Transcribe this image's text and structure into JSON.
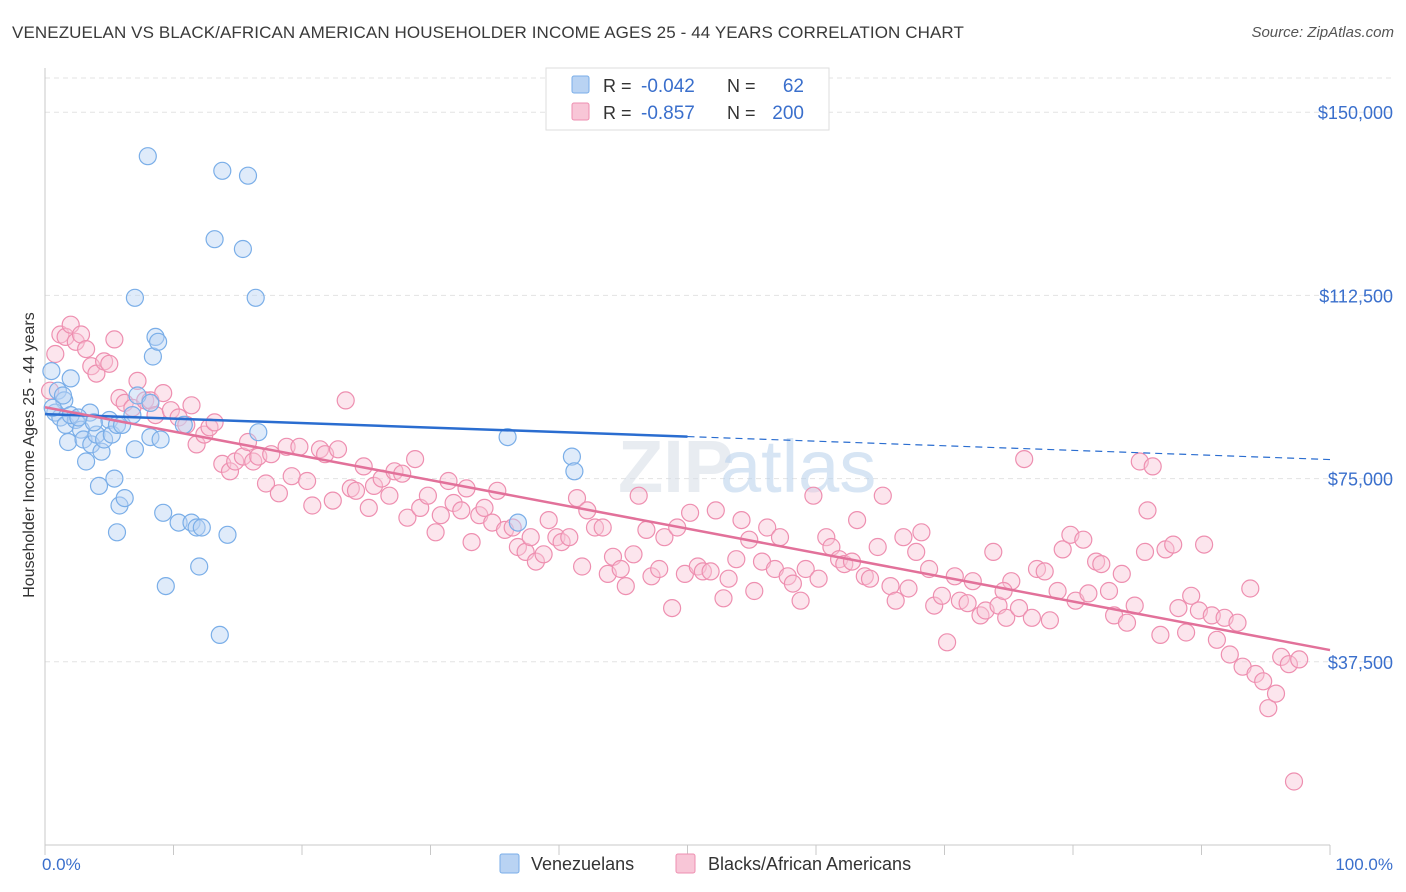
{
  "title": "VENEZUELAN VS BLACK/AFRICAN AMERICAN HOUSEHOLDER INCOME AGES 25 - 44 YEARS CORRELATION CHART",
  "source": "Source: ZipAtlas.com",
  "watermark": {
    "part1": "ZIP",
    "part2": "atlas"
  },
  "colors": {
    "venezuelan": "#7aaee8",
    "venezuelan_fill": "#b9d3f3",
    "venezuelan_line": "#2a6dd0",
    "black": "#ee8fb0",
    "black_fill": "#f8c6d7",
    "black_line": "#e2719a",
    "axis_label": "#3a6fcc",
    "grid": "#e3e3e3"
  },
  "chart_data": {
    "type": "scatter",
    "title": "VENEZUELAN VS BLACK/AFRICAN AMERICAN HOUSEHOLDER INCOME AGES 25 - 44 YEARS CORRELATION CHART",
    "xlabel": "",
    "ylabel": "Householder Income Ages 25 - 44 years",
    "xlim": [
      0,
      100
    ],
    "ylim": [
      0,
      157000
    ],
    "x_tick_labels": [
      "0.0%",
      "100.0%"
    ],
    "y_ticks": [
      37500,
      75000,
      112500,
      150000
    ],
    "y_tick_labels": [
      "$37,500",
      "$75,000",
      "$112,500",
      "$150,000"
    ],
    "grid": true,
    "legend_position": "top-center",
    "bottom_legend": [
      "Venezuelans",
      "Blacks/African Americans"
    ],
    "stats": [
      {
        "series": "Venezuelans",
        "r_label": "R =",
        "r": "-0.042",
        "n_label": "N =",
        "n": "62"
      },
      {
        "series": "Blacks/African Americans",
        "r_label": "R =",
        "r": "-0.857",
        "n_label": "N =",
        "n": "200"
      }
    ],
    "series": [
      {
        "name": "Venezuelans",
        "trend": {
          "x": [
            0,
            50,
            100
          ],
          "y": [
            88200,
            83600,
            78900
          ],
          "solid_until": 50
        },
        "points": [
          [
            0.5,
            97000
          ],
          [
            1.0,
            93000
          ],
          [
            1.5,
            91000
          ],
          [
            2.0,
            95500
          ],
          [
            0.8,
            88500
          ],
          [
            1.2,
            87500
          ],
          [
            1.6,
            86000
          ],
          [
            1.8,
            82500
          ],
          [
            2.4,
            87000
          ],
          [
            2.8,
            85000
          ],
          [
            3.0,
            83000
          ],
          [
            3.2,
            78500
          ],
          [
            3.6,
            82000
          ],
          [
            4.0,
            84000
          ],
          [
            4.4,
            80500
          ],
          [
            4.6,
            83000
          ],
          [
            5.0,
            87000
          ],
          [
            5.2,
            84000
          ],
          [
            5.6,
            86000
          ],
          [
            6.0,
            86000
          ],
          [
            4.2,
            73500
          ],
          [
            5.4,
            75000
          ],
          [
            5.8,
            69500
          ],
          [
            6.2,
            71000
          ],
          [
            5.6,
            64000
          ],
          [
            6.8,
            88000
          ],
          [
            7.2,
            92000
          ],
          [
            7.0,
            81000
          ],
          [
            8.0,
            141000
          ],
          [
            8.2,
            83500
          ],
          [
            8.6,
            104000
          ],
          [
            8.4,
            100000
          ],
          [
            8.8,
            103000
          ],
          [
            8.2,
            90500
          ],
          [
            9.0,
            83000
          ],
          [
            9.2,
            68000
          ],
          [
            9.4,
            53000
          ],
          [
            10.4,
            66000
          ],
          [
            10.8,
            86000
          ],
          [
            11.4,
            66000
          ],
          [
            11.8,
            65000
          ],
          [
            12.0,
            57000
          ],
          [
            12.2,
            65000
          ],
          [
            13.2,
            124000
          ],
          [
            13.6,
            43000
          ],
          [
            13.8,
            138000
          ],
          [
            14.2,
            63500
          ],
          [
            15.4,
            122000
          ],
          [
            15.8,
            137000
          ],
          [
            16.4,
            112000
          ],
          [
            16.6,
            84500
          ],
          [
            7.0,
            112000
          ],
          [
            2.0,
            88000
          ],
          [
            3.5,
            88500
          ],
          [
            0.6,
            89500
          ],
          [
            1.4,
            92000
          ],
          [
            3.8,
            86500
          ],
          [
            2.6,
            87500
          ],
          [
            36.0,
            83500
          ],
          [
            36.8,
            66000
          ],
          [
            41.0,
            79500
          ],
          [
            41.2,
            76500
          ]
        ]
      },
      {
        "name": "Blacks/African Americans",
        "trend": {
          "x": [
            0,
            100
          ],
          "y": [
            89600,
            39900
          ]
        },
        "points": [
          [
            0.4,
            93000
          ],
          [
            0.8,
            100500
          ],
          [
            1.2,
            104500
          ],
          [
            1.6,
            104000
          ],
          [
            2.0,
            106500
          ],
          [
            2.4,
            103000
          ],
          [
            2.8,
            104500
          ],
          [
            3.2,
            101500
          ],
          [
            3.6,
            98000
          ],
          [
            4.0,
            96500
          ],
          [
            4.6,
            99000
          ],
          [
            5.0,
            98500
          ],
          [
            5.4,
            103500
          ],
          [
            5.8,
            91500
          ],
          [
            6.2,
            90500
          ],
          [
            6.8,
            89500
          ],
          [
            7.2,
            95000
          ],
          [
            7.8,
            91000
          ],
          [
            8.2,
            91000
          ],
          [
            8.6,
            88000
          ],
          [
            9.2,
            92500
          ],
          [
            9.8,
            89000
          ],
          [
            10.4,
            87500
          ],
          [
            11.0,
            86000
          ],
          [
            11.4,
            90000
          ],
          [
            11.8,
            82000
          ],
          [
            12.4,
            84000
          ],
          [
            12.8,
            85500
          ],
          [
            13.2,
            86500
          ],
          [
            13.8,
            78000
          ],
          [
            14.4,
            76500
          ],
          [
            14.8,
            78500
          ],
          [
            15.4,
            79500
          ],
          [
            15.8,
            82500
          ],
          [
            16.2,
            78500
          ],
          [
            16.6,
            79500
          ],
          [
            17.2,
            74000
          ],
          [
            17.6,
            80000
          ],
          [
            18.2,
            72000
          ],
          [
            18.8,
            81500
          ],
          [
            19.2,
            75500
          ],
          [
            19.8,
            81500
          ],
          [
            20.4,
            74500
          ],
          [
            20.8,
            69500
          ],
          [
            21.4,
            81000
          ],
          [
            21.8,
            80000
          ],
          [
            22.4,
            70500
          ],
          [
            22.8,
            81000
          ],
          [
            23.4,
            91000
          ],
          [
            23.8,
            73000
          ],
          [
            24.2,
            72500
          ],
          [
            24.8,
            77500
          ],
          [
            25.2,
            69000
          ],
          [
            25.6,
            73500
          ],
          [
            26.2,
            75000
          ],
          [
            26.8,
            71500
          ],
          [
            27.2,
            76500
          ],
          [
            27.8,
            76000
          ],
          [
            28.2,
            67000
          ],
          [
            28.8,
            79000
          ],
          [
            29.2,
            69000
          ],
          [
            29.8,
            71500
          ],
          [
            30.4,
            64000
          ],
          [
            30.8,
            67500
          ],
          [
            31.4,
            74500
          ],
          [
            31.8,
            70000
          ],
          [
            32.4,
            68500
          ],
          [
            32.8,
            73000
          ],
          [
            33.2,
            62000
          ],
          [
            33.8,
            67500
          ],
          [
            34.2,
            69000
          ],
          [
            34.8,
            66000
          ],
          [
            35.2,
            72500
          ],
          [
            35.8,
            64500
          ],
          [
            36.4,
            65000
          ],
          [
            36.8,
            61000
          ],
          [
            37.4,
            60000
          ],
          [
            37.8,
            63000
          ],
          [
            38.2,
            58000
          ],
          [
            38.8,
            59500
          ],
          [
            39.2,
            66500
          ],
          [
            39.8,
            63000
          ],
          [
            40.2,
            62000
          ],
          [
            40.8,
            63000
          ],
          [
            41.4,
            71000
          ],
          [
            41.8,
            57000
          ],
          [
            42.2,
            68500
          ],
          [
            42.8,
            65000
          ],
          [
            43.4,
            65000
          ],
          [
            43.8,
            55500
          ],
          [
            44.2,
            59000
          ],
          [
            44.8,
            56500
          ],
          [
            45.2,
            53000
          ],
          [
            45.8,
            59500
          ],
          [
            46.2,
            71500
          ],
          [
            46.8,
            64500
          ],
          [
            47.2,
            55000
          ],
          [
            47.8,
            56500
          ],
          [
            48.2,
            63000
          ],
          [
            48.8,
            48500
          ],
          [
            49.2,
            65000
          ],
          [
            49.8,
            55500
          ],
          [
            50.2,
            68000
          ],
          [
            50.8,
            57000
          ],
          [
            51.2,
            56000
          ],
          [
            51.8,
            56000
          ],
          [
            52.2,
            68500
          ],
          [
            52.8,
            50500
          ],
          [
            53.2,
            54500
          ],
          [
            53.8,
            58500
          ],
          [
            54.2,
            66500
          ],
          [
            54.8,
            62500
          ],
          [
            55.2,
            52000
          ],
          [
            55.8,
            58000
          ],
          [
            56.2,
            65000
          ],
          [
            56.8,
            56500
          ],
          [
            57.2,
            63000
          ],
          [
            57.8,
            55000
          ],
          [
            58.2,
            53500
          ],
          [
            58.8,
            50000
          ],
          [
            59.2,
            56500
          ],
          [
            59.8,
            71500
          ],
          [
            60.2,
            54500
          ],
          [
            60.8,
            63000
          ],
          [
            61.2,
            61000
          ],
          [
            61.8,
            58500
          ],
          [
            62.2,
            57500
          ],
          [
            62.8,
            58000
          ],
          [
            63.2,
            66500
          ],
          [
            63.8,
            55000
          ],
          [
            64.2,
            54500
          ],
          [
            64.8,
            61000
          ],
          [
            65.2,
            71500
          ],
          [
            65.8,
            53000
          ],
          [
            66.2,
            50000
          ],
          [
            66.8,
            63000
          ],
          [
            67.2,
            52500
          ],
          [
            67.8,
            60000
          ],
          [
            68.2,
            64000
          ],
          [
            68.8,
            56500
          ],
          [
            69.2,
            49000
          ],
          [
            69.8,
            51000
          ],
          [
            70.2,
            41500
          ],
          [
            70.8,
            55000
          ],
          [
            71.2,
            50000
          ],
          [
            71.8,
            49500
          ],
          [
            72.2,
            54000
          ],
          [
            72.8,
            47000
          ],
          [
            73.2,
            48000
          ],
          [
            73.8,
            60000
          ],
          [
            74.2,
            49000
          ],
          [
            74.8,
            46500
          ],
          [
            75.2,
            54000
          ],
          [
            75.8,
            48500
          ],
          [
            76.2,
            79000
          ],
          [
            76.8,
            46500
          ],
          [
            77.2,
            56500
          ],
          [
            77.8,
            56000
          ],
          [
            78.2,
            46000
          ],
          [
            78.8,
            52000
          ],
          [
            79.2,
            60500
          ],
          [
            79.8,
            63500
          ],
          [
            80.2,
            50000
          ],
          [
            80.8,
            62500
          ],
          [
            81.2,
            51500
          ],
          [
            81.8,
            58000
          ],
          [
            82.2,
            57500
          ],
          [
            82.8,
            52000
          ],
          [
            83.2,
            47000
          ],
          [
            83.8,
            55500
          ],
          [
            84.2,
            45500
          ],
          [
            84.8,
            49000
          ],
          [
            85.2,
            78500
          ],
          [
            85.8,
            68500
          ],
          [
            86.2,
            77500
          ],
          [
            86.8,
            43000
          ],
          [
            87.2,
            60500
          ],
          [
            87.8,
            61500
          ],
          [
            88.2,
            48500
          ],
          [
            88.8,
            43500
          ],
          [
            89.2,
            51000
          ],
          [
            89.8,
            48000
          ],
          [
            90.2,
            61500
          ],
          [
            90.8,
            47000
          ],
          [
            91.2,
            42000
          ],
          [
            91.8,
            46500
          ],
          [
            92.2,
            39000
          ],
          [
            92.8,
            45500
          ],
          [
            93.2,
            36500
          ],
          [
            93.8,
            52500
          ],
          [
            94.2,
            35000
          ],
          [
            94.8,
            33500
          ],
          [
            95.2,
            28000
          ],
          [
            95.8,
            31000
          ],
          [
            96.2,
            38500
          ],
          [
            96.8,
            37000
          ],
          [
            97.2,
            13000
          ],
          [
            97.6,
            38000
          ],
          [
            85.6,
            60000
          ],
          [
            74.6,
            52000
          ]
        ]
      }
    ]
  }
}
